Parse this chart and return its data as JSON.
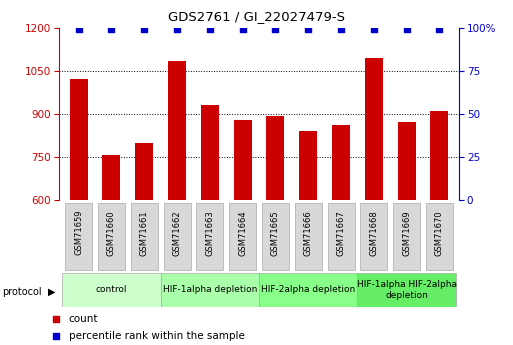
{
  "title": "GDS2761 / GI_22027479-S",
  "samples": [
    "GSM71659",
    "GSM71660",
    "GSM71661",
    "GSM71662",
    "GSM71663",
    "GSM71664",
    "GSM71665",
    "GSM71666",
    "GSM71667",
    "GSM71668",
    "GSM71669",
    "GSM71670"
  ],
  "counts": [
    1020,
    758,
    800,
    1085,
    930,
    880,
    893,
    840,
    862,
    1095,
    872,
    910
  ],
  "percentile_ranks": [
    99,
    99,
    99,
    99,
    99,
    99,
    99,
    99,
    99,
    99,
    99,
    99
  ],
  "bar_color": "#cc0000",
  "dot_color": "#0000cc",
  "ylim_left": [
    600,
    1200
  ],
  "ylim_right": [
    0,
    100
  ],
  "yticks_left": [
    600,
    750,
    900,
    1050,
    1200
  ],
  "yticks_right": [
    0,
    25,
    50,
    75,
    100
  ],
  "grid_lines": [
    750,
    900,
    1050
  ],
  "protocols": [
    {
      "label": "control",
      "start": 0,
      "end": 3,
      "color": "#ccffcc"
    },
    {
      "label": "HIF-1alpha depletion",
      "start": 3,
      "end": 6,
      "color": "#aaffaa"
    },
    {
      "label": "HIF-2alpha depletion",
      "start": 6,
      "end": 9,
      "color": "#88ff88"
    },
    {
      "label": "HIF-1alpha HIF-2alpha\ndepletion",
      "start": 9,
      "end": 12,
      "color": "#66ee66"
    }
  ],
  "bar_color_red": "#cc0000",
  "dot_color_blue": "#0000cc",
  "left_tick_color": "#cc0000",
  "right_tick_color": "#0000cc",
  "bar_width": 0.55,
  "label_box_color": "#d8d8d8",
  "label_box_edge": "#aaaaaa",
  "bg_color": "#ffffff"
}
